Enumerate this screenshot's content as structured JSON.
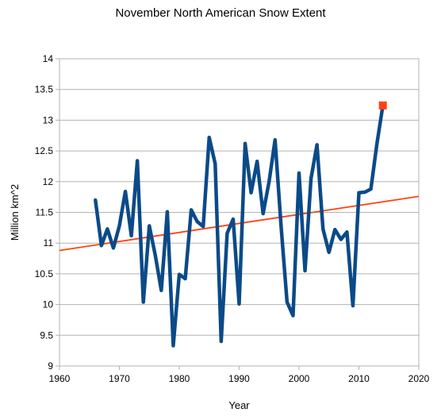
{
  "chart_data": {
    "type": "line",
    "title": "November North American Snow Extent",
    "xlabel": "Year",
    "ylabel": "Million km^2",
    "xlim": [
      1960,
      2020
    ],
    "ylim": [
      9,
      14
    ],
    "x_ticks": [
      "1960",
      "1970",
      "1980",
      "1990",
      "2000",
      "2010",
      "2020"
    ],
    "y_ticks": [
      "9",
      "9.5",
      "10",
      "10.5",
      "11",
      "11.5",
      "12",
      "12.5",
      "13",
      "13.5",
      "14"
    ],
    "grid": true,
    "legend": "none",
    "series": [
      {
        "color": "#0b4a88",
        "x": [
          1966,
          1967,
          1968,
          1969,
          1970,
          1971,
          1972,
          1973,
          1974,
          1975,
          1976,
          1977,
          1978,
          1979,
          1980,
          1981,
          1982,
          1983,
          1984,
          1985,
          1986,
          1987,
          1988,
          1989,
          1990,
          1991,
          1992,
          1993,
          1994,
          1995,
          1996,
          1997,
          1998,
          1999,
          2000,
          2001,
          2002,
          2003,
          2004,
          2005,
          2006,
          2007,
          2008,
          2009,
          2010,
          2011,
          2012,
          2013,
          2014
        ],
        "y": [
          11.7,
          10.96,
          11.23,
          10.92,
          11.28,
          11.84,
          11.12,
          12.34,
          10.04,
          11.28,
          10.8,
          10.23,
          11.51,
          9.33,
          10.49,
          10.42,
          11.54,
          11.35,
          11.27,
          12.72,
          12.29,
          9.4,
          11.16,
          11.39,
          10.01,
          12.62,
          11.82,
          12.33,
          11.48,
          12.0,
          12.68,
          11.28,
          10.04,
          9.82,
          12.14,
          10.55,
          12.05,
          12.6,
          11.23,
          10.85,
          11.22,
          11.06,
          11.18,
          9.98,
          11.82,
          11.83,
          11.88,
          12.61,
          13.24
        ]
      },
      {
        "type": "trend",
        "color": "#ff420e",
        "x": [
          1960,
          2020
        ],
        "y": [
          10.88,
          11.76
        ]
      }
    ],
    "highlight_point": {
      "x": 2014,
      "y": 13.24,
      "color": "#ff420e",
      "marker": "square"
    }
  }
}
